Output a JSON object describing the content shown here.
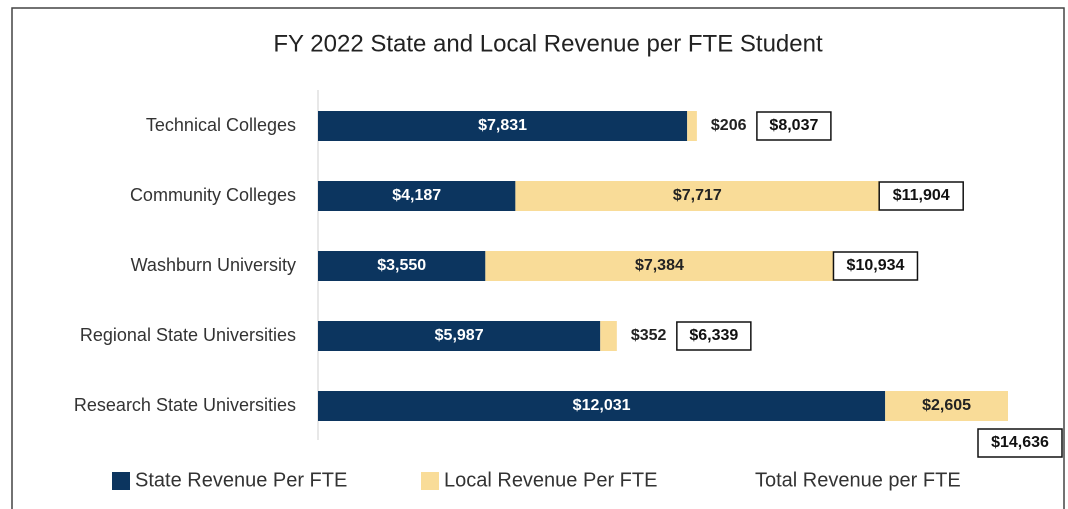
{
  "chart_data": {
    "type": "stacked-bar-horizontal",
    "title": "FY 2022 State and Local Revenue per FTE Student",
    "categories": [
      "Technical Colleges",
      "Community Colleges",
      "Washburn University",
      "Regional State Universities",
      "Research State Universities"
    ],
    "series": [
      {
        "name": "State Revenue Per FTE",
        "color": "#0c355f",
        "values": [
          7831,
          4187,
          3550,
          5987,
          12031
        ],
        "value_labels": [
          "$7,831",
          "$4,187",
          "$3,550",
          "$5,987",
          "$12,031"
        ]
      },
      {
        "name": "Local Revenue Per FTE",
        "color": "#f9dc98",
        "values": [
          206,
          7717,
          7384,
          352,
          2605
        ],
        "value_labels": [
          "$206",
          "$7,717",
          "$7,384",
          "$352",
          "$2,605"
        ]
      },
      {
        "name": "Total Revenue per FTE",
        "values": [
          8037,
          11904,
          10934,
          6339,
          14636
        ],
        "value_labels": [
          "$8,037",
          "$11,904",
          "$10,934",
          "$6,339",
          "$14,636"
        ]
      }
    ]
  }
}
